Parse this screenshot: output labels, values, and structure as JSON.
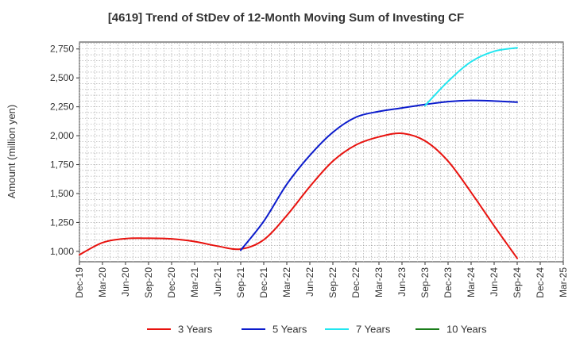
{
  "chart_data": {
    "type": "line",
    "title": "[4619]  Trend of StDev of 12-Month Moving Sum of Investing CF",
    "ylabel": "Amount (million yen)",
    "xlabel": "",
    "ylim": [
      910,
      2810
    ],
    "y_ticks": [
      1000,
      1250,
      1500,
      1750,
      2000,
      2250,
      2500,
      2750
    ],
    "y_tick_labels": [
      "1,000",
      "1,250",
      "1,500",
      "1,750",
      "2,000",
      "2,250",
      "2,500",
      "2,750"
    ],
    "categories": [
      "Dec-19",
      "Mar-20",
      "Jun-20",
      "Sep-20",
      "Dec-20",
      "Mar-21",
      "Jun-21",
      "Sep-21",
      "Dec-21",
      "Mar-22",
      "Jun-22",
      "Sep-22",
      "Dec-22",
      "Mar-23",
      "Jun-23",
      "Sep-23",
      "Dec-23",
      "Mar-24",
      "Jun-24",
      "Sep-24",
      "Dec-24",
      "Mar-25"
    ],
    "grid": true,
    "legend_position": "bottom",
    "series": [
      {
        "name": "3 Years",
        "color": "#e8120e",
        "values": [
          970,
          1075,
          1110,
          1113,
          1108,
          1085,
          1045,
          1020,
          1100,
          1310,
          1560,
          1780,
          1920,
          1990,
          2020,
          1955,
          1780,
          1510,
          1220,
          940,
          null,
          null
        ]
      },
      {
        "name": "5 Years",
        "color": "#0b1bcc",
        "values": [
          null,
          null,
          null,
          null,
          null,
          null,
          null,
          1010,
          1260,
          1580,
          1830,
          2030,
          2160,
          2210,
          2240,
          2270,
          2295,
          2305,
          2300,
          2290,
          null,
          null
        ]
      },
      {
        "name": "7 Years",
        "color": "#22e6f0",
        "values": [
          null,
          null,
          null,
          null,
          null,
          null,
          null,
          null,
          null,
          null,
          null,
          null,
          null,
          null,
          null,
          2260,
          2470,
          2640,
          2730,
          2760,
          null,
          null
        ]
      },
      {
        "name": "10 Years",
        "color": "#1a7d1a",
        "values": [
          null,
          null,
          null,
          null,
          null,
          null,
          null,
          null,
          null,
          null,
          null,
          null,
          null,
          null,
          null,
          null,
          null,
          null,
          null,
          null,
          null,
          null
        ]
      }
    ]
  }
}
